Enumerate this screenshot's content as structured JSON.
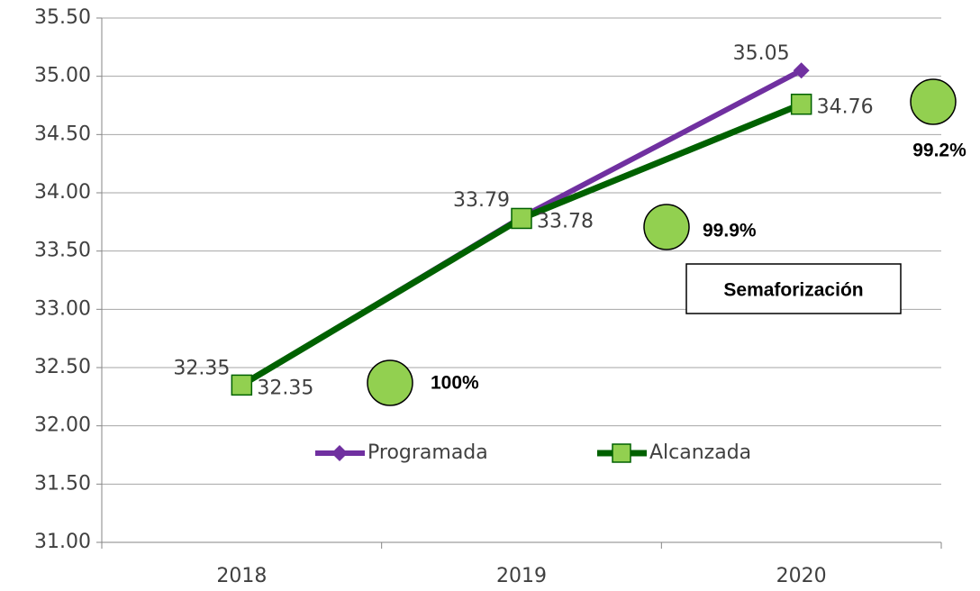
{
  "chart_data": {
    "type": "line",
    "categories": [
      "2018",
      "2019",
      "2020"
    ],
    "series": [
      {
        "name": "Programada",
        "color": "#7030a0",
        "marker": "diamond",
        "values": [
          32.35,
          33.79,
          35.05
        ]
      },
      {
        "name": "Alcanzada",
        "color": "#006100",
        "marker": "square",
        "marker_color": "#92d050",
        "values": [
          32.35,
          33.78,
          34.76
        ]
      }
    ],
    "ylim": [
      31,
      35.5
    ],
    "yticks": [
      {
        "value": 31,
        "label": "31.00"
      },
      {
        "value": 31.5,
        "label": "31.50"
      },
      {
        "value": 32,
        "label": "32.00"
      },
      {
        "value": 32.5,
        "label": "32.50"
      },
      {
        "value": 33,
        "label": "33.00"
      },
      {
        "value": 33.5,
        "label": "33.50"
      },
      {
        "value": 34,
        "label": "34.00"
      },
      {
        "value": 34.5,
        "label": "34.50"
      },
      {
        "value": 35,
        "label": "35.00"
      },
      {
        "value": 35.5,
        "label": "35.50"
      }
    ],
    "grid": true,
    "annotations": [
      "Semaforización",
      "100%",
      "99.9%",
      "99.2%"
    ]
  }
}
